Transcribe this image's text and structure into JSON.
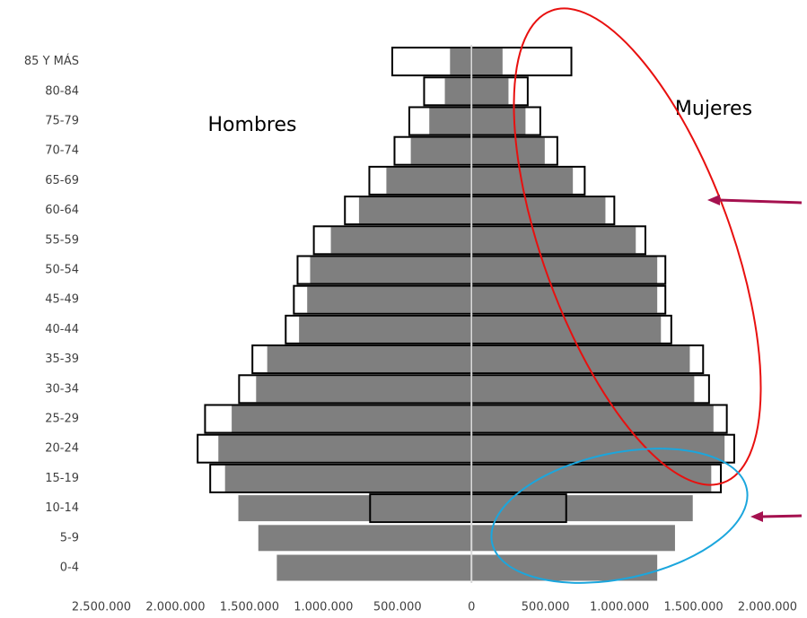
{
  "chart_data": {
    "type": "pyramid",
    "categories": [
      "0-4",
      "5-9",
      "10-14",
      "15-19",
      "20-24",
      "25-29",
      "30-34",
      "35-39",
      "40-44",
      "45-49",
      "50-54",
      "55-59",
      "60-64",
      "65-69",
      "70-74",
      "75-79",
      "80-84",
      "85 Y MÁS"
    ],
    "annotations": [
      "Hombres",
      "Mujeres"
    ],
    "series": [
      {
        "color": "#7f7f7f",
        "values": [
          -1315000,
          -1440000,
          -1575000,
          -1665000,
          -1710000,
          -1620000,
          -1455000,
          -1380000,
          -1165000,
          -1110000,
          -1090000,
          -950000,
          -760000,
          -575000,
          -410000,
          -285000,
          -180000,
          -145000
        ]
      },
      {
        "color": "#7f7f7f",
        "values": [
          1255000,
          1375000,
          1495000,
          1620000,
          1710000,
          1635000,
          1505000,
          1475000,
          1280000,
          1255000,
          1255000,
          1110000,
          905000,
          685000,
          495000,
          365000,
          250000,
          210000
        ]
      },
      {
        "color": "#000000",
        "outline": true,
        "values": [
          null,
          null,
          -685000,
          -1765000,
          -1850000,
          -1800000,
          -1570000,
          -1480000,
          -1255000,
          -1200000,
          -1175000,
          -1065000,
          -855000,
          -690000,
          -520000,
          -420000,
          -320000,
          -535000
        ]
      },
      {
        "color": "#000000",
        "outline": true,
        "values": [
          null,
          null,
          640000,
          1685000,
          1775000,
          1725000,
          1605000,
          1565000,
          1350000,
          1310000,
          1310000,
          1175000,
          965000,
          765000,
          580000,
          465000,
          380000,
          675000
        ]
      }
    ],
    "xlim": [
      -2500000,
      2000000
    ],
    "xticks": [
      {
        "value": -2500000,
        "label": "2.500.000"
      },
      {
        "value": -2000000,
        "label": "2.000.000"
      },
      {
        "value": -1500000,
        "label": "1.500.000"
      },
      {
        "value": -1000000,
        "label": "1.000.000"
      },
      {
        "value": -500000,
        "label": "500.000"
      },
      0,
      {
        "value": 500000,
        "label": "500.000"
      },
      {
        "value": 1000000,
        "label": "1.000.000"
      },
      {
        "value": 1500000,
        "label": "1.500.000"
      },
      {
        "value": 2000000,
        "label": "2.000.000"
      }
    ]
  }
}
